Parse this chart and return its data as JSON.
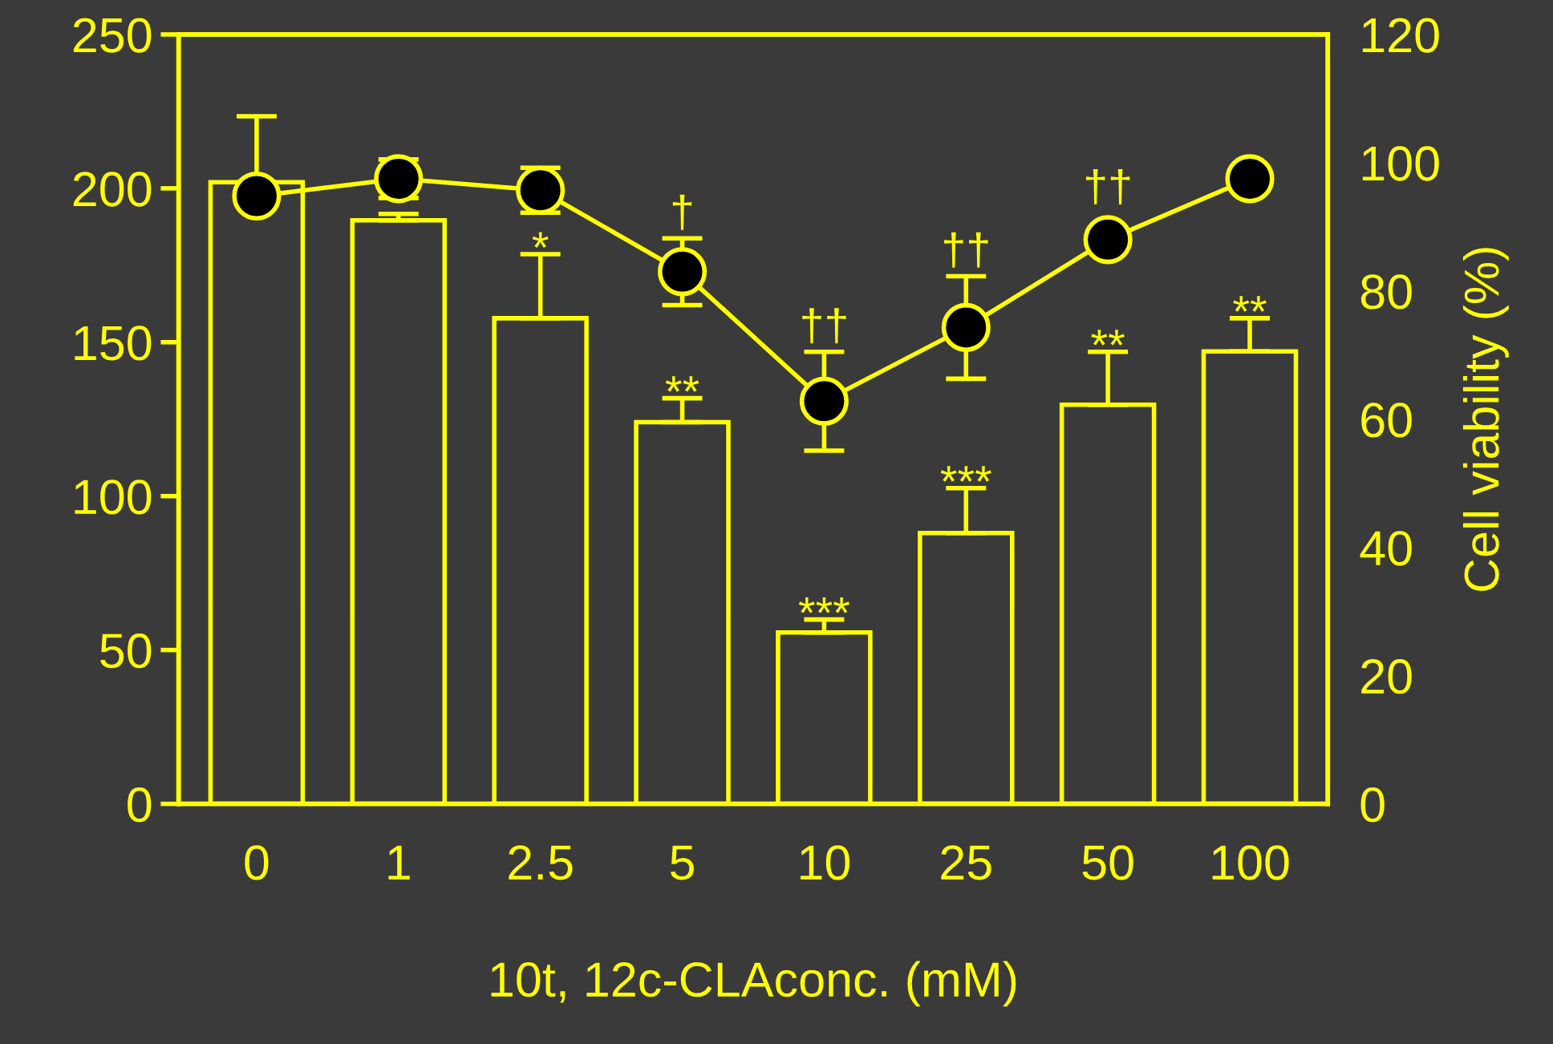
{
  "chart_data": {
    "type": "bar",
    "xlabel": "10t, 12c-CLAconc. (mM)",
    "y2label": "Cell viability (%)",
    "categories": [
      "0",
      "1",
      "2.5",
      "5",
      "10",
      "25",
      "50",
      "100"
    ],
    "series": [
      {
        "axis": "y",
        "value_labels": [
          null,
          null,
          "*",
          "**",
          "***",
          "***",
          "**",
          "**"
        ],
        "color": "#ffff00",
        "values": [
          202,
          189.6,
          157.8,
          124,
          55.7,
          88,
          129.7,
          147
        ],
        "errors": [
          [
            202,
            223.4
          ],
          [
            189.6,
            191.7
          ],
          [
            157.8,
            178.6
          ],
          [
            124,
            131.8
          ],
          [
            55.7,
            59.9
          ],
          [
            88,
            102.6
          ],
          [
            129.7,
            146.9
          ],
          [
            147,
            157.8
          ]
        ]
      },
      {
        "type": "line",
        "axis": "y2",
        "color": "#ffff00",
        "values": [
          94.8,
          97.5,
          95.7,
          83,
          62.8,
          74.3,
          88,
          97.5
        ],
        "errors": [
          null,
          3,
          3.5,
          5.2,
          7.7,
          8,
          null,
          null
        ],
        "value_labels": [
          null,
          null,
          null,
          "†",
          "††",
          "††",
          "††",
          null
        ]
      }
    ],
    "ylim": [
      0,
      250
    ],
    "yticks": [
      0,
      50,
      100,
      150,
      200,
      250
    ],
    "y2lim": [
      0,
      120
    ],
    "y2ticks": [
      0,
      20,
      40,
      60,
      80,
      100,
      120
    ],
    "marker": "circle",
    "line_style": "solid",
    "grid": false,
    "legend": false
  }
}
